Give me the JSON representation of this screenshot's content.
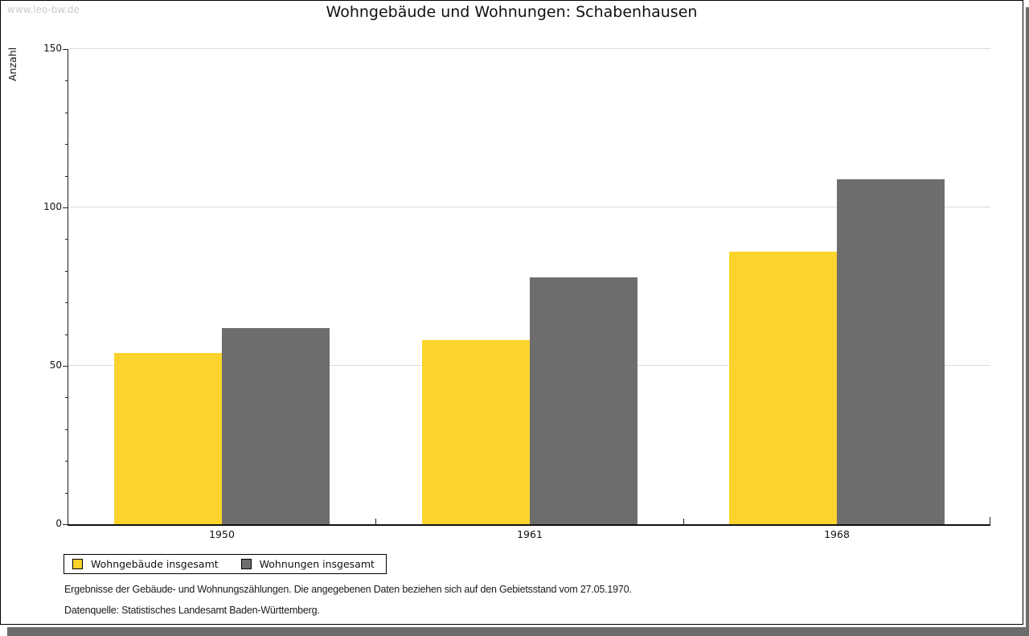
{
  "watermark": "www.leo-bw.de",
  "chart_data": {
    "type": "bar",
    "title": "Wohngebäude und Wohnungen: Schabenhausen",
    "xlabel": "",
    "ylabel": "Anzahl",
    "categories": [
      "1950",
      "1961",
      "1968"
    ],
    "series": [
      {
        "name": "Wohngebäude insgesamt",
        "color": "#FCD32D",
        "values": [
          54,
          58,
          86
        ]
      },
      {
        "name": "Wohnungen insgesamt",
        "color": "#6D6D6D",
        "values": [
          62,
          78,
          109
        ]
      }
    ],
    "ylim": [
      0,
      150
    ],
    "y_major_ticks": [
      0,
      50,
      100,
      150
    ],
    "y_minor_step": 10,
    "grid": "horizontal-major-only",
    "gridline_color": "#DCDCDC",
    "legend_position": "bottom-left"
  },
  "footer": {
    "line1": "Ergebnisse der Gebäude- und Wohnungszählungen. Die angegebenen Daten beziehen sich auf den Gebietsstand vom 27.05.1970.",
    "line2": "Datenquelle: Statistisches Landesamt Baden-Württemberg."
  },
  "colors": {
    "axis": "#222222",
    "watermark": "#CBCBCB",
    "shadow": "#6B6B6B",
    "background": "#FFFFFF"
  }
}
